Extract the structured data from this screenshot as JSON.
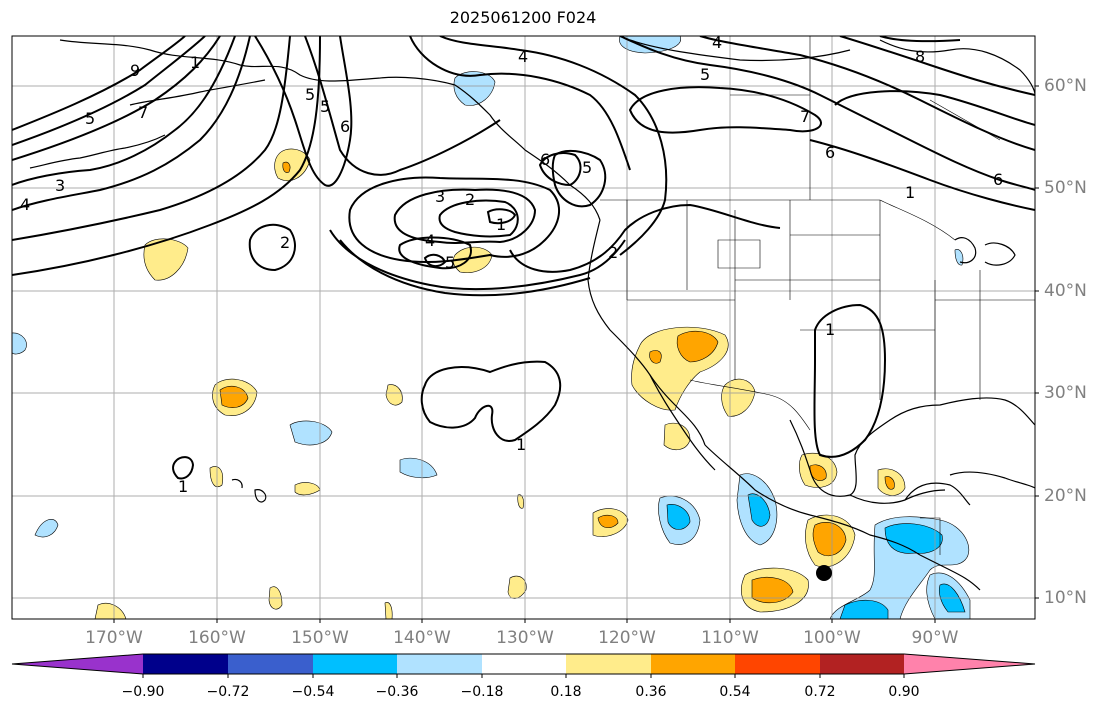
{
  "title": "2025061200 F024",
  "longitude_labels": [
    "170°W",
    "160°W",
    "150°W",
    "140°W",
    "130°W",
    "120°W",
    "110°W",
    "100°W",
    "90°W"
  ],
  "latitude_labels": [
    "10°N",
    "20°N",
    "30°N",
    "40°N",
    "50°N",
    "60°N"
  ],
  "colorbar": {
    "tick_labels": [
      "−0.90",
      "−0.72",
      "−0.54",
      "−0.36",
      "−0.18",
      "0.18",
      "0.36",
      "0.54",
      "0.72",
      "0.90"
    ],
    "colors": [
      "#9932cc",
      "#00008b",
      "#3a5fcd",
      "#00bfff",
      "#b0e2ff",
      "#ffffff",
      "#ffec8b",
      "#ffa500",
      "#ff4500",
      "#b22222",
      "#ff82ab"
    ]
  },
  "contour_labels": [
    "9",
    "7",
    "5",
    "3",
    "4",
    "1",
    "5",
    "7",
    "3",
    "2",
    "1",
    "5",
    "6",
    "5",
    "4",
    "3",
    "2",
    "1",
    "4",
    "5",
    "6",
    "4",
    "5",
    "7",
    "6",
    "8",
    "1",
    "6",
    "5",
    "2",
    "2",
    "1",
    "1",
    "1"
  ],
  "marker": "storm-center-dot"
}
